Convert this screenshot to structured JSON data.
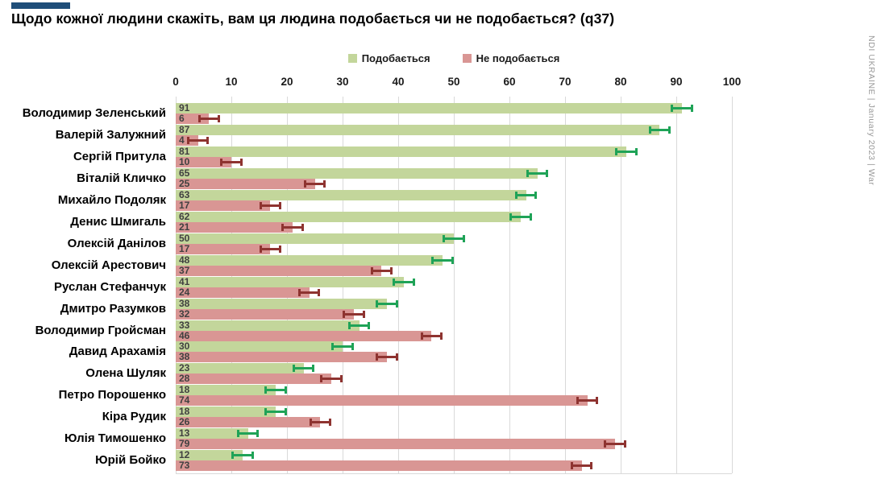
{
  "accent_color": "#1f4e79",
  "title": "Щодо кожної людини скажіть, вам ця людина подобається чи не подобається? (q37)",
  "watermark": "NDI UKRAINE | January 2023 | War",
  "colors": {
    "like_bar": "#c3d69b",
    "dislike_bar": "#d99694",
    "like_error": "#1fa357",
    "dislike_error": "#8e3330",
    "gridline": "#d9d9d9",
    "value_label": "#404040"
  },
  "chart_data": {
    "type": "bar",
    "orientation": "horizontal",
    "title": "Щодо кожної людини скажіть, вам ця людина подобається чи не подобається? (q37)",
    "xlabel": "",
    "ylabel": "",
    "xlim": [
      0,
      100
    ],
    "xticks": [
      0,
      10,
      20,
      30,
      40,
      50,
      60,
      70,
      80,
      90,
      100
    ],
    "grid": true,
    "legend_position": "top-center",
    "error_bars": true,
    "error_margin_estimate": 2,
    "categories": [
      "Володимир Зеленський",
      "Валерій Залужний",
      "Сергій Притула",
      "Віталій Кличко",
      "Михайло Подоляк",
      "Денис Шмигаль",
      "Олексій Данілов",
      "Олексій Арестович",
      "Руслан Стефанчук",
      "Дмитро Разумков",
      "Володимир Гройсман",
      "Давид Арахамія",
      "Олена Шуляк",
      "Петро Порошенко",
      "Кіра Рудик",
      "Юлія Тимошенко",
      "Юрій Бойко"
    ],
    "series": [
      {
        "name": "Подобається",
        "color": "#c3d69b",
        "error_color": "#1fa357",
        "values": [
          91,
          87,
          81,
          65,
          63,
          62,
          50,
          48,
          41,
          38,
          33,
          30,
          23,
          18,
          18,
          13,
          12
        ]
      },
      {
        "name": "Не подобається",
        "color": "#d99694",
        "error_color": "#8e3330",
        "values": [
          6,
          4,
          10,
          25,
          17,
          21,
          17,
          37,
          24,
          32,
          46,
          38,
          28,
          74,
          26,
          79,
          73
        ]
      }
    ]
  }
}
